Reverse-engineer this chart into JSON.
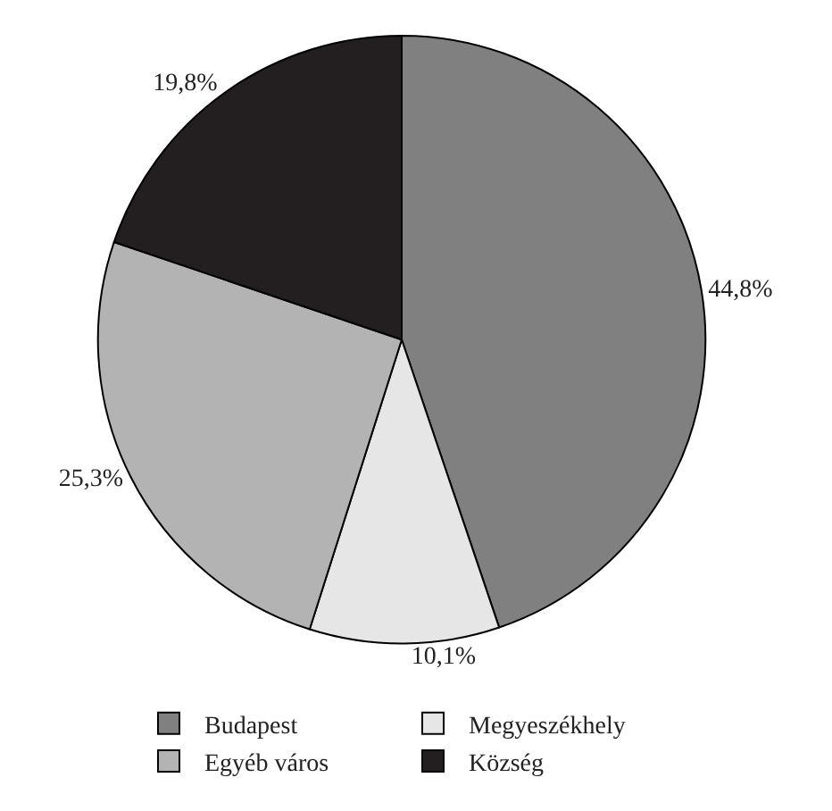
{
  "chart_data": {
    "type": "pie",
    "categories": [
      "Budapest",
      "Megyeszékhely",
      "Egyéb város",
      "Község"
    ],
    "values": [
      44.8,
      10.1,
      25.3,
      19.8
    ],
    "value_labels": [
      "44,8%",
      "10,1%",
      "25,3%",
      "19,8%"
    ],
    "colors": [
      "#808080",
      "#e6e6e6",
      "#b3b3b3",
      "#231f20"
    ],
    "legend": "bottom"
  }
}
